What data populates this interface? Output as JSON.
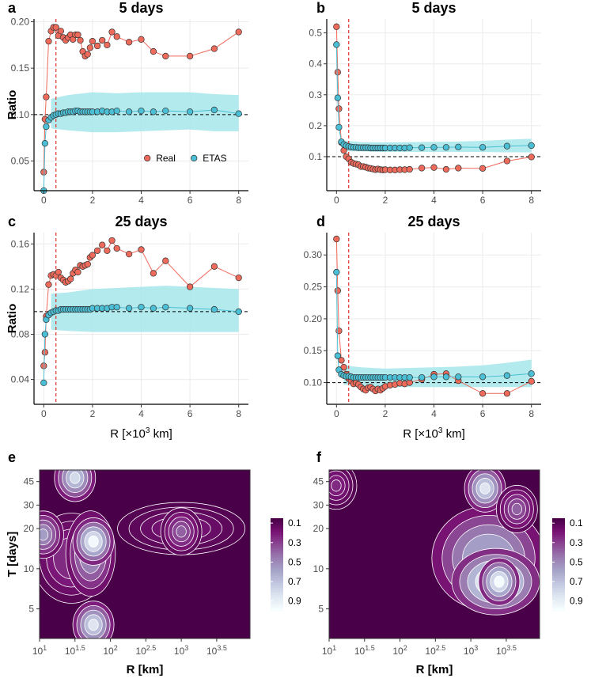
{
  "chart_data": [
    {
      "id": "a",
      "type": "line",
      "panel_label": "a",
      "title": "5 days",
      "xlabel": "",
      "ylabel": "Ratio",
      "xlim": [
        -0.4,
        8.4
      ],
      "ylim": [
        0.018,
        0.203
      ],
      "xticks": [
        0,
        2,
        4,
        6,
        8
      ],
      "xtick_labels": [
        "0",
        "2",
        "4",
        "6",
        "8"
      ],
      "yticks": [
        0.05,
        0.1,
        0.15,
        0.2
      ],
      "ytick_labels": [
        "0.05",
        "0.10",
        "0.15",
        "0.20"
      ],
      "hline": 0.1,
      "vline": 0.5,
      "legend": {
        "position": "bottom-right",
        "entries": [
          "Real",
          "ETAS"
        ]
      },
      "series": [
        {
          "name": "Real",
          "color": "#ee6a5b",
          "x": [
            0,
            0.05,
            0.1,
            0.2,
            0.3,
            0.4,
            0.5,
            0.6,
            0.7,
            0.8,
            0.9,
            1.0,
            1.1,
            1.2,
            1.3,
            1.4,
            1.5,
            1.6,
            1.7,
            1.8,
            1.9,
            2.0,
            2.2,
            2.4,
            2.6,
            2.8,
            3.0,
            3.5,
            4.0,
            4.5,
            5.0,
            6.0,
            7.0,
            8.0
          ],
          "y": [
            0.038,
            0.095,
            0.119,
            0.179,
            0.19,
            0.194,
            0.194,
            0.185,
            0.19,
            0.183,
            0.18,
            0.183,
            0.186,
            0.181,
            0.186,
            0.186,
            0.18,
            0.168,
            0.163,
            0.165,
            0.172,
            0.179,
            0.174,
            0.18,
            0.175,
            0.189,
            0.184,
            0.178,
            0.181,
            0.168,
            0.163,
            0.163,
            0.171,
            0.189
          ]
        },
        {
          "name": "ETAS",
          "color": "#4bbfd5",
          "x": [
            0,
            0.05,
            0.1,
            0.2,
            0.3,
            0.4,
            0.5,
            0.6,
            0.7,
            0.8,
            0.9,
            1.0,
            1.1,
            1.2,
            1.3,
            1.4,
            1.5,
            1.6,
            1.7,
            1.8,
            1.9,
            2.0,
            2.2,
            2.4,
            2.6,
            2.8,
            3.0,
            3.5,
            4.0,
            4.5,
            5.0,
            6.0,
            7.0,
            8.0
          ],
          "y": [
            0.018,
            0.069,
            0.087,
            0.094,
            0.097,
            0.099,
            0.1,
            0.101,
            0.101,
            0.102,
            0.102,
            0.103,
            0.103,
            0.103,
            0.104,
            0.104,
            0.103,
            0.103,
            0.103,
            0.103,
            0.103,
            0.103,
            0.103,
            0.104,
            0.103,
            0.103,
            0.104,
            0.103,
            0.104,
            0.103,
            0.104,
            0.103,
            0.105,
            0.101
          ]
        }
      ],
      "band": {
        "x": [
          0.3,
          1.0,
          2.0,
          3.0,
          4.0,
          5.0,
          6.0,
          7.0,
          8.0
        ],
        "lower": [
          0.085,
          0.083,
          0.081,
          0.081,
          0.082,
          0.083,
          0.084,
          0.082,
          0.082
        ],
        "upper": [
          0.117,
          0.121,
          0.124,
          0.123,
          0.124,
          0.124,
          0.124,
          0.122,
          0.121
        ]
      }
    },
    {
      "id": "b",
      "type": "line",
      "panel_label": "b",
      "title": "5 days",
      "xlabel": "",
      "ylabel": "",
      "xlim": [
        -0.4,
        8.4
      ],
      "ylim": [
        -0.01,
        0.545
      ],
      "xticks": [
        0,
        2,
        4,
        6,
        8
      ],
      "xtick_labels": [
        "0",
        "2",
        "4",
        "6",
        "8"
      ],
      "yticks": [
        0.1,
        0.2,
        0.3,
        0.4,
        0.5
      ],
      "ytick_labels": [
        "0.1",
        "0.2",
        "0.3",
        "0.4",
        "0.5"
      ],
      "hline": 0.1,
      "vline": 0.5,
      "series": [
        {
          "name": "Real",
          "color": "#ee6a5b",
          "x": [
            0,
            0.05,
            0.1,
            0.2,
            0.3,
            0.4,
            0.5,
            0.6,
            0.7,
            0.8,
            0.9,
            1.0,
            1.1,
            1.2,
            1.3,
            1.4,
            1.5,
            1.6,
            1.7,
            1.8,
            1.9,
            2.0,
            2.2,
            2.4,
            2.6,
            2.8,
            3.0,
            3.5,
            4.0,
            4.5,
            5.0,
            6.0,
            7.0,
            8.0
          ],
          "y": [
            0.52,
            0.373,
            0.255,
            0.146,
            0.12,
            0.1,
            0.093,
            0.082,
            0.078,
            0.076,
            0.074,
            0.068,
            0.068,
            0.066,
            0.063,
            0.062,
            0.06,
            0.058,
            0.06,
            0.058,
            0.057,
            0.058,
            0.057,
            0.057,
            0.058,
            0.058,
            0.059,
            0.063,
            0.065,
            0.059,
            0.063,
            0.062,
            0.086,
            0.099
          ]
        },
        {
          "name": "ETAS",
          "color": "#4bbfd5",
          "x": [
            0,
            0.05,
            0.1,
            0.2,
            0.3,
            0.4,
            0.5,
            0.6,
            0.7,
            0.8,
            0.9,
            1.0,
            1.1,
            1.2,
            1.3,
            1.4,
            1.5,
            1.6,
            1.7,
            1.8,
            1.9,
            2.0,
            2.2,
            2.4,
            2.6,
            2.8,
            3.0,
            3.5,
            4.0,
            4.5,
            5.0,
            6.0,
            7.0,
            8.0
          ],
          "y": [
            0.462,
            0.29,
            0.195,
            0.148,
            0.139,
            0.135,
            0.133,
            0.131,
            0.13,
            0.13,
            0.129,
            0.129,
            0.129,
            0.129,
            0.129,
            0.128,
            0.128,
            0.128,
            0.128,
            0.128,
            0.128,
            0.128,
            0.128,
            0.128,
            0.128,
            0.128,
            0.129,
            0.129,
            0.13,
            0.13,
            0.131,
            0.13,
            0.134,
            0.136
          ]
        }
      ],
      "band": {
        "x": [
          0.3,
          1.0,
          2.0,
          3.0,
          4.0,
          5.0,
          6.0,
          7.0,
          8.0
        ],
        "lower": [
          0.118,
          0.117,
          0.115,
          0.115,
          0.115,
          0.115,
          0.115,
          0.114,
          0.114
        ],
        "upper": [
          0.152,
          0.147,
          0.146,
          0.147,
          0.148,
          0.149,
          0.151,
          0.155,
          0.158
        ]
      }
    },
    {
      "id": "c",
      "type": "line",
      "panel_label": "c",
      "title": "25 days",
      "xlabel": "R [×10³ km]",
      "ylabel": "Ratio",
      "xlim": [
        -0.4,
        8.4
      ],
      "ylim": [
        0.018,
        0.17
      ],
      "xticks": [
        0,
        2,
        4,
        6,
        8
      ],
      "xtick_labels": [
        "0",
        "2",
        "4",
        "6",
        "8"
      ],
      "yticks": [
        0.04,
        0.08,
        0.12,
        0.16
      ],
      "ytick_labels": [
        "0.04",
        "0.08",
        "0.12",
        "0.16"
      ],
      "hline": 0.1,
      "vline": 0.5,
      "series": [
        {
          "name": "Real",
          "color": "#ee6a5b",
          "x": [
            0,
            0.05,
            0.1,
            0.2,
            0.3,
            0.4,
            0.5,
            0.6,
            0.7,
            0.8,
            0.9,
            1.0,
            1.1,
            1.2,
            1.3,
            1.4,
            1.5,
            1.6,
            1.7,
            1.8,
            1.9,
            2.0,
            2.2,
            2.4,
            2.6,
            2.8,
            3.0,
            3.5,
            4.0,
            4.5,
            5.0,
            6.0,
            7.0,
            8.0
          ],
          "y": [
            0.052,
            0.064,
            0.096,
            0.124,
            0.132,
            0.133,
            0.132,
            0.135,
            0.13,
            0.128,
            0.126,
            0.127,
            0.129,
            0.134,
            0.137,
            0.135,
            0.141,
            0.14,
            0.141,
            0.142,
            0.148,
            0.15,
            0.154,
            0.159,
            0.154,
            0.163,
            0.156,
            0.151,
            0.155,
            0.134,
            0.145,
            0.122,
            0.14,
            0.13
          ]
        },
        {
          "name": "ETAS",
          "color": "#4bbfd5",
          "x": [
            0,
            0.05,
            0.1,
            0.2,
            0.3,
            0.4,
            0.5,
            0.6,
            0.7,
            0.8,
            0.9,
            1.0,
            1.1,
            1.2,
            1.3,
            1.4,
            1.5,
            1.6,
            1.7,
            1.8,
            1.9,
            2.0,
            2.2,
            2.4,
            2.6,
            2.8,
            3.0,
            3.5,
            4.0,
            4.5,
            5.0,
            6.0,
            7.0,
            8.0
          ],
          "y": [
            0.037,
            0.08,
            0.093,
            0.097,
            0.099,
            0.1,
            0.101,
            0.101,
            0.102,
            0.102,
            0.102,
            0.102,
            0.102,
            0.102,
            0.102,
            0.102,
            0.102,
            0.102,
            0.102,
            0.102,
            0.102,
            0.103,
            0.103,
            0.103,
            0.103,
            0.104,
            0.104,
            0.103,
            0.104,
            0.103,
            0.104,
            0.103,
            0.102,
            0.1
          ]
        }
      ],
      "band": {
        "x": [
          0.3,
          1.0,
          2.0,
          3.0,
          4.0,
          5.0,
          6.0,
          7.0,
          8.0
        ],
        "lower": [
          0.084,
          0.083,
          0.082,
          0.082,
          0.082,
          0.082,
          0.082,
          0.082,
          0.082
        ],
        "upper": [
          0.116,
          0.117,
          0.12,
          0.121,
          0.122,
          0.123,
          0.122,
          0.121,
          0.12
        ]
      }
    },
    {
      "id": "d",
      "type": "line",
      "panel_label": "d",
      "title": "25 days",
      "xlabel": "R [×10³ km]",
      "ylabel": "",
      "xlim": [
        -0.4,
        8.4
      ],
      "ylim": [
        0.066,
        0.335
      ],
      "xticks": [
        0,
        2,
        4,
        6,
        8
      ],
      "xtick_labels": [
        "0",
        "2",
        "4",
        "6",
        "8"
      ],
      "yticks": [
        0.1,
        0.15,
        0.2,
        0.25,
        0.3
      ],
      "ytick_labels": [
        "0.10",
        "0.15",
        "0.20",
        "0.25",
        "0.30"
      ],
      "hline": 0.1,
      "vline": 0.5,
      "series": [
        {
          "name": "Real",
          "color": "#ee6a5b",
          "x": [
            0,
            0.05,
            0.1,
            0.2,
            0.3,
            0.4,
            0.5,
            0.6,
            0.7,
            0.8,
            0.9,
            1.0,
            1.1,
            1.2,
            1.3,
            1.4,
            1.5,
            1.6,
            1.7,
            1.8,
            1.9,
            2.0,
            2.2,
            2.4,
            2.6,
            2.8,
            3.0,
            3.5,
            4.0,
            4.5,
            5.0,
            6.0,
            7.0,
            8.0
          ],
          "y": [
            0.325,
            0.244,
            0.181,
            0.135,
            0.124,
            0.113,
            0.106,
            0.103,
            0.098,
            0.1,
            0.097,
            0.093,
            0.09,
            0.088,
            0.092,
            0.093,
            0.09,
            0.087,
            0.09,
            0.088,
            0.091,
            0.094,
            0.096,
            0.097,
            0.099,
            0.098,
            0.1,
            0.105,
            0.113,
            0.114,
            0.103,
            0.083,
            0.083,
            0.102
          ]
        },
        {
          "name": "ETAS",
          "color": "#4bbfd5",
          "x": [
            0,
            0.05,
            0.1,
            0.2,
            0.3,
            0.4,
            0.5,
            0.6,
            0.7,
            0.8,
            0.9,
            1.0,
            1.1,
            1.2,
            1.3,
            1.4,
            1.5,
            1.6,
            1.7,
            1.8,
            1.9,
            2.0,
            2.2,
            2.4,
            2.6,
            2.8,
            3.0,
            3.5,
            4.0,
            4.5,
            5.0,
            6.0,
            7.0,
            8.0
          ],
          "y": [
            0.273,
            0.142,
            0.12,
            0.113,
            0.111,
            0.11,
            0.11,
            0.109,
            0.108,
            0.108,
            0.108,
            0.108,
            0.108,
            0.108,
            0.108,
            0.108,
            0.108,
            0.108,
            0.108,
            0.108,
            0.108,
            0.108,
            0.108,
            0.108,
            0.108,
            0.108,
            0.108,
            0.108,
            0.109,
            0.109,
            0.109,
            0.109,
            0.111,
            0.114
          ]
        }
      ],
      "band": {
        "x": [
          0.3,
          1.0,
          2.0,
          3.0,
          4.0,
          5.0,
          6.0,
          7.0,
          8.0
        ],
        "lower": [
          0.097,
          0.095,
          0.093,
          0.093,
          0.093,
          0.093,
          0.093,
          0.093,
          0.093
        ],
        "upper": [
          0.127,
          0.124,
          0.122,
          0.123,
          0.124,
          0.125,
          0.127,
          0.131,
          0.136
        ]
      }
    },
    {
      "id": "e",
      "type": "heatmap",
      "panel_label": "e",
      "xlabel": "R [km]",
      "ylabel": "T [days]",
      "xscale": "log10",
      "xlim": [
        1.0,
        3.97
      ],
      "xtick_labels": [
        "10^1",
        "10^1.5",
        "10^2",
        "10^2.5",
        "10^3",
        "10^3.5"
      ],
      "xtick_values": [
        1.0,
        1.5,
        2.0,
        2.5,
        3.0,
        3.5
      ],
      "yscale": "log",
      "ylim": [
        3.0,
        55
      ],
      "yticks": [
        5,
        10,
        20,
        30,
        45
      ],
      "ytick_labels": [
        "5",
        "10",
        "20",
        "30",
        "45"
      ],
      "colorbar": {
        "ticks": [
          0.1,
          0.3,
          0.5,
          0.7,
          0.9
        ],
        "tick_labels": [
          "0.1",
          "0.3",
          "0.5",
          "0.7",
          "0.9"
        ],
        "low_color": "#4a0048",
        "high_color": "#f6feff"
      },
      "hotspots": [
        {
          "logR": 1.76,
          "T": 16,
          "value": 0.97
        },
        {
          "logR": 1.76,
          "T": 3.8,
          "value": 0.85
        },
        {
          "logR": 1.5,
          "T": 48,
          "value": 0.8
        },
        {
          "logR": 1.05,
          "T": 18,
          "value": 0.55
        },
        {
          "logR": 3.0,
          "T": 19,
          "value": 0.35
        }
      ]
    },
    {
      "id": "f",
      "type": "heatmap",
      "panel_label": "f",
      "xlabel": "R [km]",
      "ylabel": "",
      "xscale": "log10",
      "xlim": [
        1.0,
        3.97
      ],
      "xtick_labels": [
        "10^1",
        "10^1.5",
        "10^2",
        "10^2.5",
        "10^3",
        "10^3.5"
      ],
      "xtick_values": [
        1.0,
        1.5,
        2.0,
        2.5,
        3.0,
        3.5
      ],
      "yscale": "log",
      "ylim": [
        3.0,
        55
      ],
      "yticks": [
        5,
        10,
        20,
        30,
        45
      ],
      "ytick_labels": [
        "5",
        "10",
        "20",
        "30",
        "45"
      ],
      "colorbar": {
        "ticks": [
          0.1,
          0.3,
          0.5,
          0.7,
          0.9
        ],
        "tick_labels": [
          "0.1",
          "0.3",
          "0.5",
          "0.7",
          "0.9"
        ],
        "low_color": "#4a0048",
        "high_color": "#f6feff"
      },
      "hotspots": [
        {
          "logR": 3.4,
          "T": 8,
          "value": 0.98
        },
        {
          "logR": 3.2,
          "T": 40,
          "value": 0.85
        },
        {
          "logR": 3.65,
          "T": 28,
          "value": 0.35
        },
        {
          "logR": 1.1,
          "T": 42,
          "value": 0.2
        }
      ]
    }
  ]
}
